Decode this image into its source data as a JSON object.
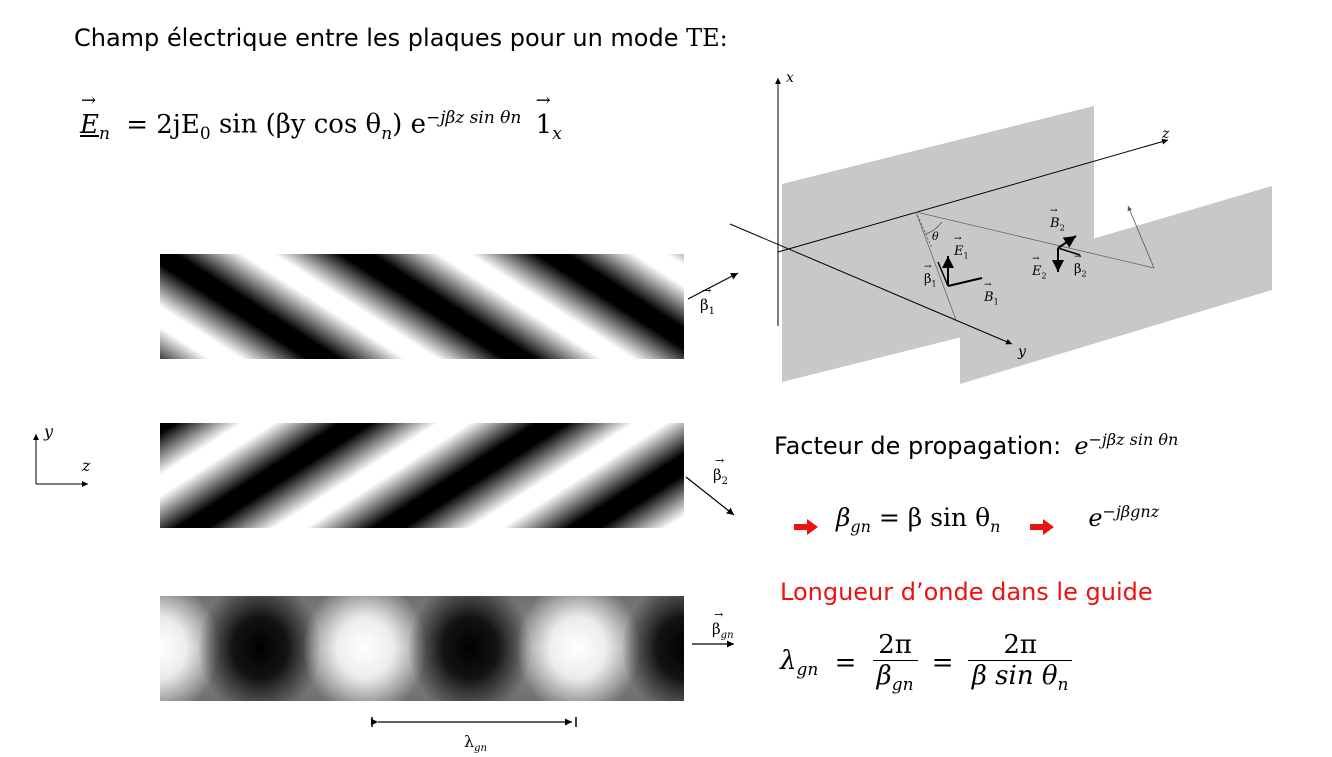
{
  "title": {
    "text": "Champ électrique entre les plaques pour un mode ",
    "mode": "TE:"
  },
  "equation_field": {
    "lhs": "E",
    "sub": "n",
    "rhs_part1": "= 2jE",
    "rhs_sub0": "0",
    "rhs_part2": " sin (βy cos θ",
    "rhs_sub_n": "n",
    "rhs_part3": ") e",
    "exponent": "−jβz sin θn",
    "unit": "1",
    "unit_sub": "x"
  },
  "bands": [
    {
      "label": "β",
      "label_sub": "1"
    },
    {
      "label": "β",
      "label_sub": "2"
    },
    {
      "label": "β",
      "label_sub": "gn"
    }
  ],
  "lambda_label": {
    "text": "λ",
    "sub": "gn"
  },
  "coord_small": {
    "y": "y",
    "z": "z"
  },
  "diagram3d": {
    "x": "x",
    "y": "y",
    "z": "z",
    "theta": "θ",
    "E1": "E",
    "E1_sub": "1",
    "beta1": "β",
    "beta1_sub": "1",
    "B1": "B",
    "B1_sub": "1",
    "B2": "B",
    "B2_sub": "2",
    "E2": "E",
    "E2_sub": "2",
    "beta2": "β",
    "beta2_sub": "2"
  },
  "propagation": {
    "label": "Facteur de propagation:",
    "expr_base": "e",
    "expr_exp": "−jβz sin θn"
  },
  "relation": {
    "beta_gn": "β",
    "beta_gn_sub": "gn",
    "rhs": " = β sin θ",
    "rhs_sub": "n",
    "result_base": "e",
    "result_exp": "−jβgnz"
  },
  "wavelength": {
    "heading": "Longueur d’onde dans le guide",
    "lambda": "λ",
    "lambda_sub": "gn",
    "eq1": "=",
    "num1": "2π",
    "den1": "β",
    "den1_sub": "gn",
    "eq2": "=",
    "num2": "2π",
    "den2": "β sin θ",
    "den2_sub": "n"
  },
  "colors": {
    "accent_red": "#ee1111",
    "plate_gray": "#c8c8c8",
    "arrow_red": "#ee1111"
  }
}
